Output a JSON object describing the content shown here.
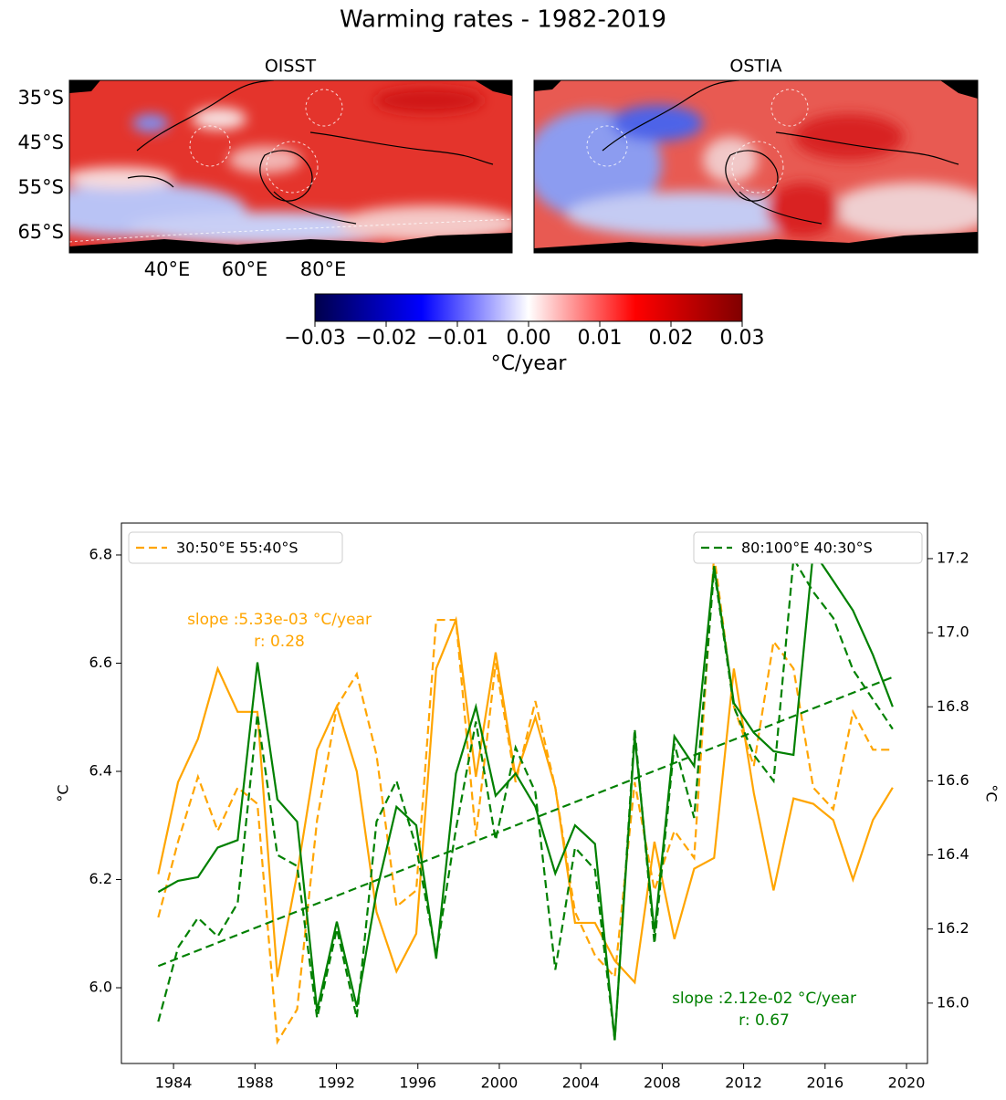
{
  "chart_data": [
    {
      "type": "map",
      "title": "Warming rates - 1982-2019",
      "panels": [
        "OISST",
        "OSTIA"
      ],
      "lat_labels": [
        "35°S",
        "45°S",
        "55°S",
        "65°S"
      ],
      "lon_labels": [
        "40°E",
        "60°E",
        "80°E"
      ],
      "colorbar": {
        "label": "°C/year",
        "lim": [
          -0.03,
          0.03
        ],
        "ticks": [
          {
            "value": -0.03,
            "label": "−0.03"
          },
          {
            "value": -0.02,
            "label": "−0.02"
          },
          {
            "value": -0.01,
            "label": "−0.01"
          },
          {
            "value": 0,
            "label": "0.00"
          },
          0.01,
          0.02,
          0.03
        ]
      }
    },
    {
      "type": "line",
      "x": [
        1983.25,
        1984.22,
        1985.2,
        1986.17,
        1987.15,
        1988.12,
        1989.1,
        1990.07,
        1991.05,
        1992.02,
        1993.0,
        1993.97,
        1994.95,
        1995.92,
        1996.9,
        1997.87,
        1998.85,
        1999.82,
        2000.8,
        2001.77,
        2002.75,
        2003.72,
        2004.7,
        2005.67,
        2006.65,
        2007.62,
        2008.6,
        2009.57,
        2010.55,
        2011.52,
        2012.5,
        2013.47,
        2014.45,
        2015.42,
        2016.4,
        2017.37,
        2018.35,
        2019.32
      ],
      "xlim": [
        1981.44,
        2021.03
      ],
      "xticks": [
        1984,
        1988,
        1992,
        1996,
        2000,
        2004,
        2008,
        2012,
        2016,
        2020
      ],
      "ylim": [
        5.86,
        6.859
      ],
      "yticks": [
        {
          "value": 6.0,
          "label": "6.0"
        },
        6.2,
        6.4,
        6.6,
        6.8
      ],
      "y2lim": [
        15.837,
        17.296
      ],
      "y2ticks": [
        {
          "value": 16.0,
          "label": "16.0"
        },
        16.2,
        16.4,
        16.6,
        16.8,
        {
          "value": 17.0,
          "label": "17.0"
        },
        17.2
      ],
      "ylabel": "°C",
      "y2label": "°C",
      "series": [
        {
          "color": "#ffa500",
          "linestyle": "solid",
          "values": [
            6.21,
            6.38,
            6.46,
            6.59,
            6.51,
            6.51,
            6.02,
            6.21,
            6.44,
            6.52,
            6.4,
            6.14,
            6.03,
            6.1,
            6.59,
            6.68,
            6.39,
            6.62,
            6.39,
            6.5,
            6.37,
            6.12,
            6.12,
            6.05,
            6.01,
            6.27,
            6.09,
            6.22,
            6.24,
            6.59,
            6.36,
            6.18,
            6.35,
            6.34,
            6.31,
            6.2,
            6.31,
            6.37
          ]
        },
        {
          "name": "30:50°E 55:40°S",
          "legend": "upper left",
          "color": "#ffa500",
          "linestyle": "dashed",
          "values": [
            6.13,
            6.27,
            6.39,
            6.29,
            6.37,
            6.34,
            5.9,
            5.96,
            6.31,
            6.52,
            6.58,
            6.43,
            6.15,
            6.18,
            6.68,
            6.68,
            6.28,
            6.6,
            6.38,
            6.53,
            6.37,
            6.14,
            6.06,
            6.02,
            6.38,
            6.18,
            6.29,
            6.24,
            6.8,
            6.52,
            6.41,
            6.64,
            6.59,
            6.37,
            6.33,
            6.51,
            6.44,
            6.44
          ]
        },
        {
          "color": "#008000",
          "linestyle": "solid",
          "axis": "y2",
          "values": [
            16.3,
            16.33,
            16.34,
            16.42,
            16.44,
            16.92,
            16.55,
            16.49,
            15.98,
            16.22,
            15.99,
            16.3,
            16.53,
            16.48,
            16.12,
            16.62,
            16.8,
            16.56,
            16.62,
            16.53,
            16.35,
            16.48,
            16.43,
            15.9,
            16.72,
            16.19,
            16.72,
            16.64,
            17.18,
            16.81,
            16.73,
            16.68,
            16.67,
            17.22,
            17.14,
            17.06,
            16.94,
            16.8
          ]
        },
        {
          "name": "80:100°E 40:30°S",
          "legend": "upper right",
          "color": "#008000",
          "linestyle": "dashed",
          "axis": "y2",
          "values": [
            15.95,
            16.15,
            16.23,
            16.18,
            16.27,
            16.78,
            16.4,
            16.37,
            15.96,
            16.2,
            15.96,
            16.49,
            16.6,
            16.42,
            16.13,
            16.47,
            16.76,
            16.44,
            16.69,
            16.57,
            16.09,
            16.42,
            16.36,
            15.9,
            16.74,
            16.16,
            16.7,
            16.5,
            17.17,
            16.8,
            16.67,
            16.6,
            17.2,
            17.11,
            17.04,
            16.9,
            16.82,
            16.74
          ]
        }
      ],
      "trend": {
        "color": "#008000",
        "axis": "y2",
        "x": [
          1983.25,
          2019.32
        ],
        "values": [
          16.1,
          16.88
        ]
      },
      "annotations": [
        {
          "text": "slope :5.33e-03 °C/year",
          "color": "#ffa500"
        },
        {
          "text": "r: 0.28",
          "color": "#ffa500"
        },
        {
          "text": "slope :2.12e-02 °C/year",
          "color": "#008000"
        },
        {
          "text": "r: 0.67",
          "color": "#008000"
        }
      ]
    }
  ]
}
